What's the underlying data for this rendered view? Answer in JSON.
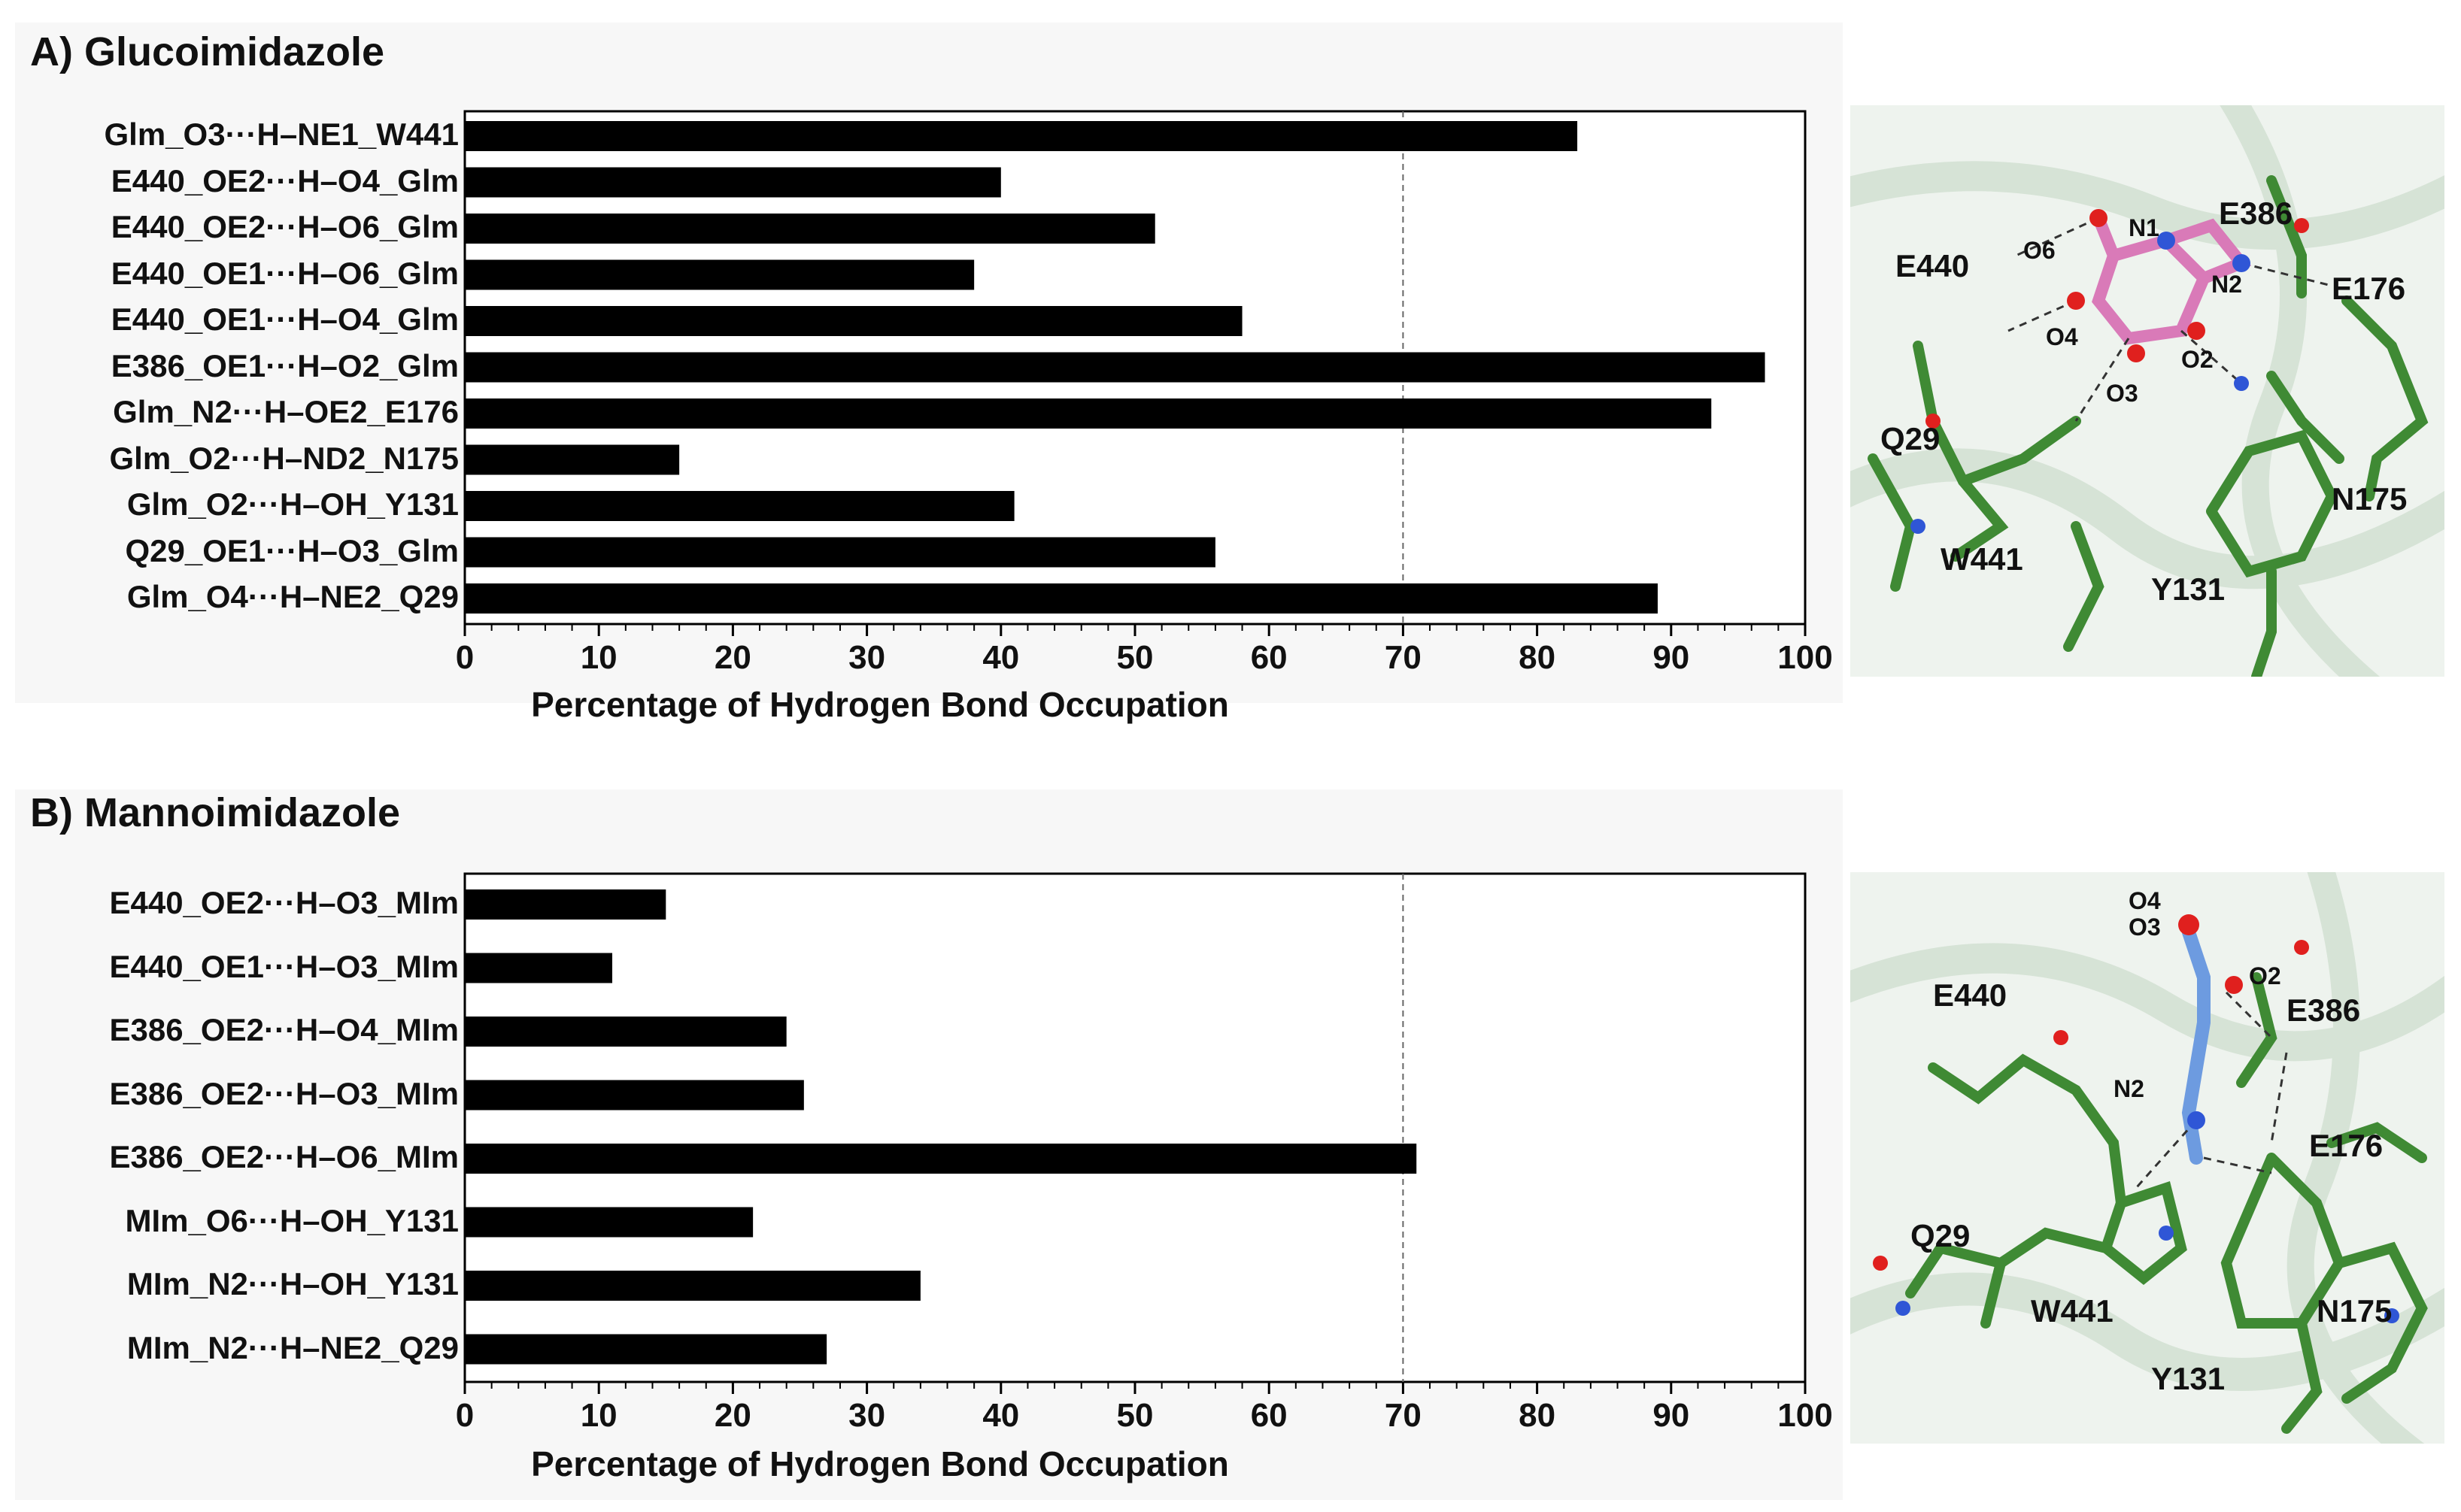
{
  "chart_data": [
    {
      "type": "bar",
      "orientation": "horizontal",
      "title": "A) Glucoimidazole",
      "xlabel": "Percentage of Hydrogen Bond Occupation",
      "xlim": [
        0,
        100
      ],
      "xticks": [
        "0",
        "10",
        "20",
        "30",
        "40",
        "50",
        "60",
        "70",
        "80",
        "90",
        "100"
      ],
      "reference_line": 70,
      "categories": [
        "Glm_O3···H–NE1_W441",
        "E440_OE2···H–O4_Glm",
        "E440_OE2···H–O6_Glm",
        "E440_OE1···H–O6_Glm",
        "E440_OE1···H–O4_Glm",
        "E386_OE1···H–O2_Glm",
        "Glm_N2···H–OE2_E176",
        "Glm_O2···H–ND2_N175",
        "Glm_O2···H–OH_Y131",
        "Q29_OE1···H–O3_Glm",
        "Glm_O4···H–NE2_Q29"
      ],
      "values": [
        83,
        40,
        51.5,
        38,
        58,
        97,
        93,
        16,
        41,
        56,
        89
      ],
      "bar_color": "#000000"
    },
    {
      "type": "bar",
      "orientation": "horizontal",
      "title": "B) Mannoimidazole",
      "xlabel": "Percentage of Hydrogen Bond Occupation",
      "xlim": [
        0,
        100
      ],
      "xticks": [
        "0",
        "10",
        "20",
        "30",
        "40",
        "50",
        "60",
        "70",
        "80",
        "90",
        "100"
      ],
      "reference_line": 70,
      "categories": [
        "E440_OE2···H–O3_MIm",
        "E440_OE1···H–O3_MIm",
        "E386_OE2···H–O4_MIm",
        "E386_OE2···H–O3_MIm",
        "E386_OE2···H–O6_MIm",
        "MIm_O6···H–OH_Y131",
        "MIm_N2···H–OH_Y131",
        "MIm_N2···H–NE2_Q29"
      ],
      "values": [
        15,
        11,
        24,
        25.3,
        71,
        21.5,
        34,
        27
      ],
      "bar_color": "#000000"
    }
  ],
  "structures": {
    "A": {
      "residues": [
        "E386",
        "E440",
        "E176",
        "Q29",
        "N175",
        "W441",
        "Y131"
      ],
      "atoms": [
        "O6",
        "N1",
        "N2",
        "O4",
        "O2",
        "O3"
      ]
    },
    "B": {
      "residues": [
        "E440",
        "E386",
        "E176",
        "Q29",
        "W441",
        "N175",
        "Y131"
      ],
      "atoms": [
        "O4",
        "O3",
        "O2",
        "N2"
      ]
    }
  },
  "colors": {
    "carbon": "#3f8a34",
    "oxygen": "#e0201e",
    "nitrogen": "#2f56d6",
    "ligand_A": "#d97ab8",
    "ligand_B": "#6d9be0",
    "ribbon": "#dfe9df"
  }
}
